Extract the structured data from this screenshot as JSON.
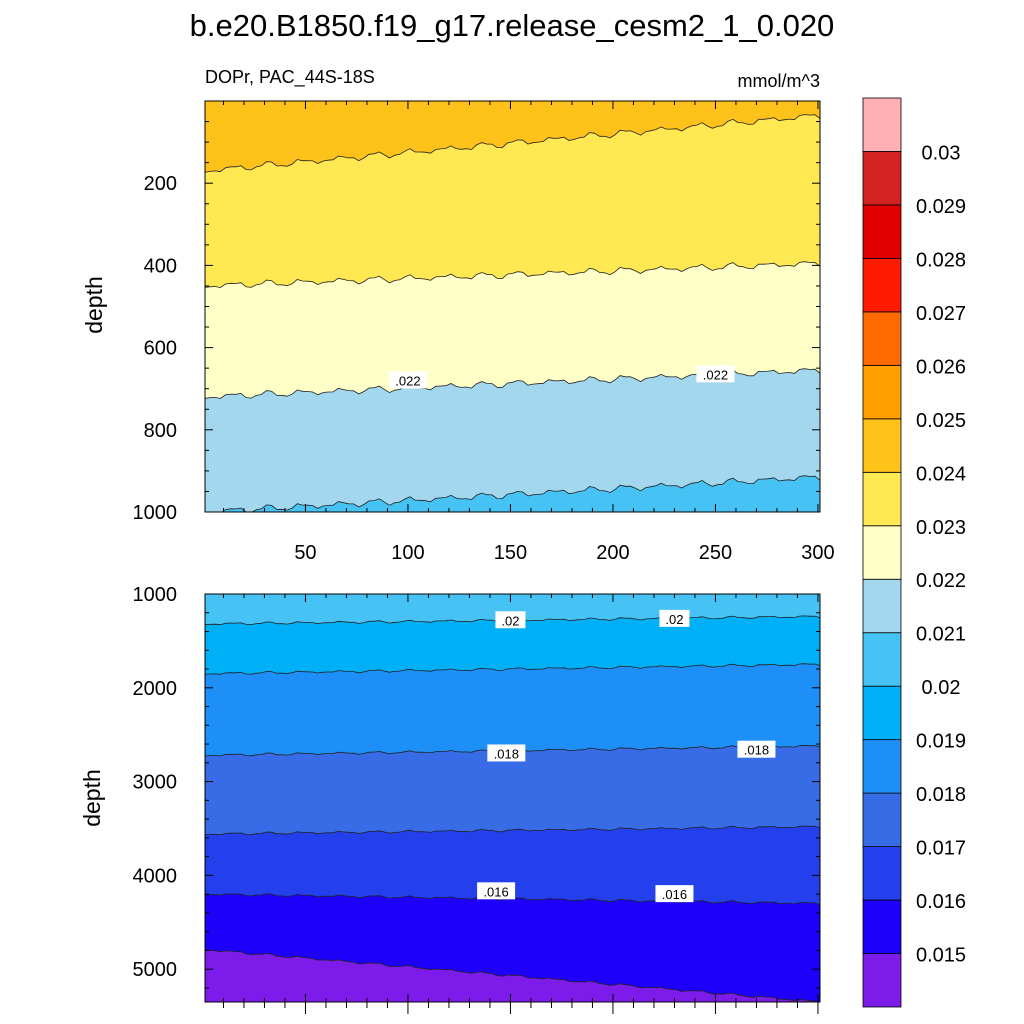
{
  "title": "b.e20.B1850.f19_g17.release_cesm2_1_0.020",
  "chart_data": {
    "type": "contour",
    "variable_label": "DOPr, PAC_44S-18S",
    "units_label": "mmol/m^3",
    "xlabel": "",
    "ylabel": "depth",
    "xlim": [
      1,
      301
    ],
    "x_ticks": [
      50,
      100,
      150,
      200,
      250,
      300
    ],
    "x_tick_labels": [
      "50",
      "100",
      "150",
      "200",
      "250",
      "300"
    ],
    "panels": [
      {
        "name": "upper",
        "ylim": [
          0,
          1000
        ],
        "y_ticks": [
          200,
          400,
          600,
          800,
          1000
        ],
        "y_tick_labels": [
          "200",
          "400",
          "600",
          "800",
          "1000"
        ],
        "bands": [
          {
            "level": 0.0235,
            "color": "#FFC21A",
            "depth_at_x1": 170,
            "depth_at_x301": 35
          },
          {
            "level": 0.0225,
            "color": "#FFE851",
            "depth_at_x1": 450,
            "depth_at_x301": 395
          },
          {
            "level": 0.0215,
            "color": "#FFFFC8",
            "depth_at_x1": 720,
            "depth_at_x301": 655
          },
          {
            "level": 0.0205,
            "color": "#A2D7EE",
            "depth_at_x1": 1000,
            "depth_at_x301": 915
          },
          {
            "level": 0.0195,
            "color": "#46C3F4",
            "depth_at_x1": 1000,
            "depth_at_x301": 1000
          }
        ],
        "line_labels": [
          {
            "text": ".022",
            "x": 100,
            "depth": 680
          },
          {
            "text": ".022",
            "x": 250,
            "depth": 665
          }
        ]
      },
      {
        "name": "lower",
        "ylim": [
          1000,
          5350
        ],
        "y_ticks": [
          1000,
          2000,
          3000,
          4000,
          5000
        ],
        "y_tick_labels": [
          "1000",
          "2000",
          "3000",
          "4000",
          "5000"
        ],
        "bands": [
          {
            "level": 0.0205,
            "color": "#46C3F4",
            "depth_at_x1": 1320,
            "depth_at_x301": 1240
          },
          {
            "level": 0.0195,
            "color": "#00B0F6",
            "depth_at_x1": 1850,
            "depth_at_x301": 1750
          },
          {
            "level": 0.0185,
            "color": "#1E8FF6",
            "depth_at_x1": 2720,
            "depth_at_x301": 2620
          },
          {
            "level": 0.0175,
            "color": "#376CE6",
            "depth_at_x1": 3560,
            "depth_at_x301": 3480
          },
          {
            "level": 0.0165,
            "color": "#2340EC",
            "depth_at_x1": 4200,
            "depth_at_x301": 4300
          },
          {
            "level": 0.0155,
            "color": "#1E00FA",
            "depth_at_x1": 4790,
            "depth_at_x301": 5350
          },
          {
            "level": 0.0145,
            "color": "#7D1CEA",
            "depth_at_x1": 5350,
            "depth_at_x301": 5350
          }
        ],
        "line_labels": [
          {
            "text": ".02",
            "x": 150,
            "depth": 1280
          },
          {
            "text": ".02",
            "x": 230,
            "depth": 1265
          },
          {
            "text": ".018",
            "x": 148,
            "depth": 2700
          },
          {
            "text": ".018",
            "x": 270,
            "depth": 2660
          },
          {
            "text": ".016",
            "x": 143,
            "depth": 4170
          },
          {
            "text": ".016",
            "x": 230,
            "depth": 4200
          }
        ]
      }
    ],
    "colorbar": {
      "colors": [
        "#7D1CEA",
        "#1E00FA",
        "#2340EC",
        "#376CE6",
        "#1E8FF6",
        "#00B0F6",
        "#46C3F4",
        "#A2D7EE",
        "#FFFFC8",
        "#FFE851",
        "#FFC21A",
        "#FFA000",
        "#FF6A00",
        "#FF1A00",
        "#E00000",
        "#D42222",
        "#FFB0B4"
      ],
      "labels": [
        "0.015",
        "0.016",
        "0.017",
        "0.018",
        "0.019",
        "0.02",
        "0.021",
        "0.022",
        "0.023",
        "0.024",
        "0.025",
        "0.026",
        "0.027",
        "0.028",
        "0.029",
        "0.03"
      ]
    }
  }
}
